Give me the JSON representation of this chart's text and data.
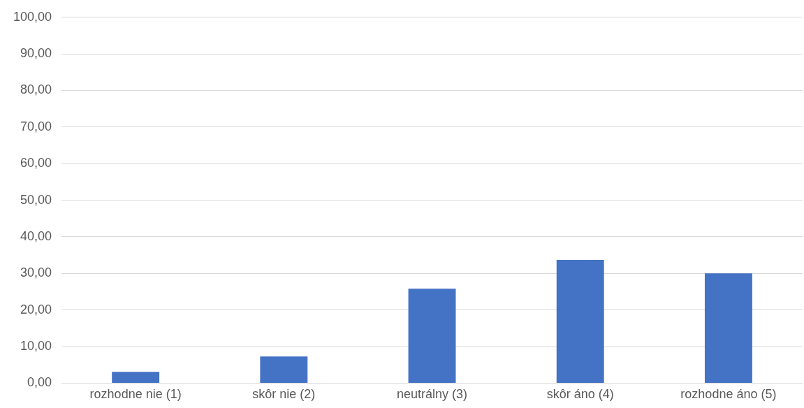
{
  "chart_data": {
    "type": "bar",
    "categories": [
      "rozhodne nie (1)",
      "skôr nie (2)",
      "neutrálny (3)",
      "skôr áno (4)",
      "rozhodne áno (5)"
    ],
    "values": [
      3.1,
      7.3,
      25.8,
      33.7,
      30.0
    ],
    "color": "#4472c4",
    "ylim": [
      0,
      100
    ],
    "yticks": [
      {
        "value": 0,
        "label": "0,00"
      },
      {
        "value": 10,
        "label": "10,00"
      },
      {
        "value": 20,
        "label": "20,00"
      },
      {
        "value": 30,
        "label": "30,00"
      },
      {
        "value": 40,
        "label": "40,00"
      },
      {
        "value": 50,
        "label": "50,00"
      },
      {
        "value": 60,
        "label": "60,00"
      },
      {
        "value": 70,
        "label": "70,00"
      },
      {
        "value": 80,
        "label": "80,00"
      },
      {
        "value": 90,
        "label": "90,00"
      },
      {
        "value": 100,
        "label": "100,00"
      }
    ],
    "grid": "y"
  }
}
